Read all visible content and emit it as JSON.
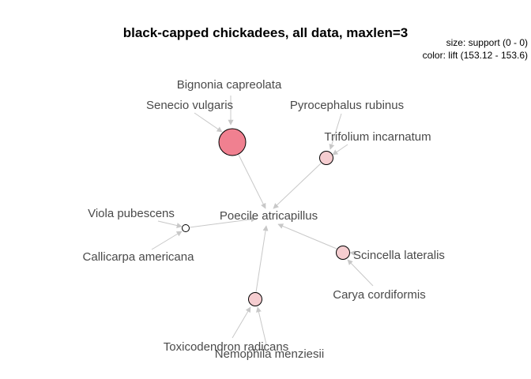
{
  "title": "black-capped chickadees, all data, maxlen=3",
  "legend": {
    "size_text": "size: support (0 - 0)",
    "color_text": "color: lift (153.12 - 153.6)"
  },
  "colors": {
    "edge": "#c8c8c8",
    "arrow": "#c8c8c8",
    "high_lift": "#f08090",
    "low_lift": "#f5cdd0",
    "min_lift": "#ffffff"
  },
  "items": {
    "center": "Poecile atricapillus",
    "bignonia": "Bignonia capreolata",
    "senecio": "Senecio vulgaris",
    "pyrocephalus": "Pyrocephalus rubinus",
    "trifolium": "Trifolium incarnatum",
    "viola": "Viola pubescens",
    "callicarpa": "Callicarpa americana",
    "scincella": "Scincella lateralis",
    "carya": "Carya cordiformis",
    "toxicodendron": "Toxicodendron radicans",
    "nemophila": "Nemophila menziesii"
  },
  "rules": [
    {
      "id": "rule-1",
      "lhs": [
        "Bignonia capreolata",
        "Senecio vulgaris"
      ],
      "rhs": "Poecile atricapillus",
      "size": "large",
      "lift": "high"
    },
    {
      "id": "rule-2",
      "lhs": [
        "Pyrocephalus rubinus",
        "Trifolium incarnatum"
      ],
      "rhs": "Poecile atricapillus",
      "size": "medium",
      "lift": "low"
    },
    {
      "id": "rule-3",
      "lhs": [
        "Viola pubescens",
        "Callicarpa americana"
      ],
      "rhs": "Poecile atricapillus",
      "size": "small",
      "lift": "min"
    },
    {
      "id": "rule-4",
      "lhs": [
        "Scincella lateralis",
        "Carya cordiformis"
      ],
      "rhs": "Poecile atricapillus",
      "size": "medium",
      "lift": "low"
    },
    {
      "id": "rule-5",
      "lhs": [
        "Toxicodendron radicans",
        "Nemophila menziesii"
      ],
      "rhs": "Poecile atricapillus",
      "size": "medium",
      "lift": "low"
    }
  ]
}
